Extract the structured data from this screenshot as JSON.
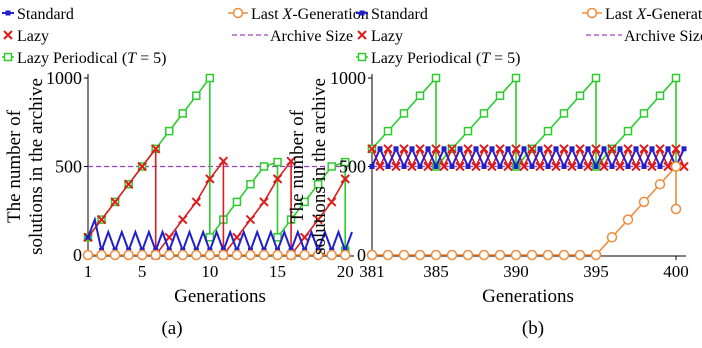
{
  "figure_captions": [
    "(a)",
    "(b)"
  ],
  "legend": {
    "standard": "Standard",
    "last_x_prefix": "Last ",
    "last_x_var": "X",
    "last_x_suffix": "-Generation",
    "lazy": "Lazy",
    "archive": "Archive Size",
    "periodical_prefix": "Lazy Periodical (",
    "periodical_var": "T",
    "periodical_suffix": " = 5)"
  },
  "colors": {
    "standard": "#1f1fcc",
    "last_x": "#f08c3c",
    "lazy": "#dd1c1c",
    "periodical": "#2ccc2c",
    "archive": "#a040c0"
  },
  "chart_data": [
    {
      "type": "line",
      "panel": "(a)",
      "xlabel": "Generations",
      "ylabel": [
        "The number of",
        "solutions in the archive"
      ],
      "xlim": [
        1,
        20.5
      ],
      "ylim": [
        0,
        1000
      ],
      "xticks": [
        1,
        5,
        10,
        15,
        20
      ],
      "yticks": [
        0,
        500,
        1000
      ],
      "archive_size": 500,
      "series": [
        {
          "key": "periodical",
          "name": "Lazy Periodical (T = 5)",
          "points": [
            [
              1,
              100
            ],
            [
              2,
              200
            ],
            [
              3,
              300
            ],
            [
              4,
              400
            ],
            [
              5,
              500
            ],
            [
              6,
              600
            ],
            [
              7,
              700
            ],
            [
              8,
              800
            ],
            [
              9,
              900
            ],
            [
              10,
              1000
            ],
            [
              10,
              100
            ],
            [
              11,
              200
            ],
            [
              12,
              300
            ],
            [
              13,
              400
            ],
            [
              14,
              500
            ],
            [
              15,
              525
            ],
            [
              15,
              100
            ],
            [
              16,
              200
            ],
            [
              17,
              300
            ],
            [
              18,
              400
            ],
            [
              19,
              500
            ],
            [
              20,
              525
            ],
            [
              20,
              25
            ]
          ]
        },
        {
          "key": "lazy",
          "name": "Lazy",
          "points": [
            [
              1,
              100
            ],
            [
              2,
              200
            ],
            [
              3,
              300
            ],
            [
              4,
              400
            ],
            [
              5,
              500
            ],
            [
              6,
              600
            ],
            [
              6,
              0
            ],
            [
              7,
              100
            ],
            [
              8,
              200
            ],
            [
              9,
              300
            ],
            [
              10,
              430
            ],
            [
              11,
              530
            ],
            [
              11,
              0
            ],
            [
              12,
              100
            ],
            [
              13,
              200
            ],
            [
              14,
              300
            ],
            [
              15,
              430
            ],
            [
              16,
              530
            ],
            [
              16,
              0
            ],
            [
              17,
              100
            ],
            [
              18,
              200
            ],
            [
              19,
              300
            ],
            [
              20,
              430
            ]
          ]
        },
        {
          "key": "standard",
          "name": "Standard",
          "points": [
            [
              1,
              100
            ],
            [
              1.5,
              200
            ],
            [
              2,
              25
            ],
            [
              2.5,
              130
            ],
            [
              3,
              25
            ],
            [
              3.5,
              130
            ],
            [
              4,
              25
            ],
            [
              4.5,
              130
            ],
            [
              5,
              25
            ],
            [
              5.5,
              130
            ],
            [
              6,
              25
            ],
            [
              6.5,
              130
            ],
            [
              7,
              25
            ],
            [
              7.5,
              130
            ],
            [
              8,
              25
            ],
            [
              8.5,
              130
            ],
            [
              9,
              25
            ],
            [
              9.5,
              130
            ],
            [
              10,
              25
            ],
            [
              10.5,
              130
            ],
            [
              11,
              25
            ],
            [
              11.5,
              130
            ],
            [
              12,
              25
            ],
            [
              12.5,
              130
            ],
            [
              13,
              25
            ],
            [
              13.5,
              130
            ],
            [
              14,
              25
            ],
            [
              14.5,
              130
            ],
            [
              15,
              25
            ],
            [
              15.5,
              130
            ],
            [
              16,
              25
            ],
            [
              16.5,
              130
            ],
            [
              17,
              25
            ],
            [
              17.5,
              130
            ],
            [
              18,
              25
            ],
            [
              18.5,
              130
            ],
            [
              19,
              25
            ],
            [
              19.5,
              130
            ],
            [
              20,
              25
            ],
            [
              20.5,
              130
            ]
          ]
        },
        {
          "key": "last_x",
          "name": "Last X-Generation",
          "points": [
            [
              1,
              0
            ],
            [
              2,
              0
            ],
            [
              3,
              0
            ],
            [
              4,
              0
            ],
            [
              5,
              0
            ],
            [
              6,
              0
            ],
            [
              7,
              0
            ],
            [
              8,
              0
            ],
            [
              9,
              0
            ],
            [
              10,
              0
            ],
            [
              11,
              0
            ],
            [
              12,
              0
            ],
            [
              13,
              0
            ],
            [
              14,
              0
            ],
            [
              15,
              0
            ],
            [
              16,
              0
            ],
            [
              17,
              0
            ],
            [
              18,
              0
            ],
            [
              19,
              0
            ],
            [
              20,
              0
            ]
          ]
        }
      ]
    },
    {
      "type": "line",
      "panel": "(b)",
      "xlabel": "Generations",
      "ylabel": [
        "The number of",
        "solutions in the archive"
      ],
      "xlim": [
        381,
        400.5
      ],
      "ylim": [
        0,
        1000
      ],
      "xticks": [
        381,
        385,
        390,
        395,
        400
      ],
      "yticks": [
        0,
        500,
        1000
      ],
      "archive_size": 500,
      "series": [
        {
          "key": "periodical",
          "name": "Lazy Periodical (T = 5)",
          "points": [
            [
              381,
              600
            ],
            [
              382,
              700
            ],
            [
              383,
              800
            ],
            [
              384,
              900
            ],
            [
              385,
              1000
            ],
            [
              385,
              500
            ],
            [
              386,
              600
            ],
            [
              387,
              700
            ],
            [
              388,
              800
            ],
            [
              389,
              900
            ],
            [
              390,
              1000
            ],
            [
              390,
              500
            ],
            [
              391,
              600
            ],
            [
              392,
              700
            ],
            [
              393,
              800
            ],
            [
              394,
              900
            ],
            [
              395,
              1000
            ],
            [
              395,
              500
            ],
            [
              396,
              600
            ],
            [
              397,
              700
            ],
            [
              398,
              800
            ],
            [
              399,
              900
            ],
            [
              400,
              1000
            ],
            [
              400,
              500
            ]
          ]
        },
        {
          "key": "lazy",
          "name": "Lazy",
          "points": [
            [
              381,
              600
            ],
            [
              381.5,
              500
            ],
            [
              382,
              600
            ],
            [
              382.5,
              500
            ],
            [
              383,
              600
            ],
            [
              383.5,
              500
            ],
            [
              384,
              600
            ],
            [
              384.5,
              500
            ],
            [
              385,
              600
            ],
            [
              385.5,
              500
            ],
            [
              386,
              600
            ],
            [
              386.5,
              500
            ],
            [
              387,
              600
            ],
            [
              387.5,
              500
            ],
            [
              388,
              600
            ],
            [
              388.5,
              500
            ],
            [
              389,
              600
            ],
            [
              389.5,
              500
            ],
            [
              390,
              600
            ],
            [
              390.5,
              500
            ],
            [
              391,
              600
            ],
            [
              391.5,
              500
            ],
            [
              392,
              600
            ],
            [
              392.5,
              500
            ],
            [
              393,
              600
            ],
            [
              393.5,
              500
            ],
            [
              394,
              600
            ],
            [
              394.5,
              500
            ],
            [
              395,
              600
            ],
            [
              395.5,
              500
            ],
            [
              396,
              600
            ],
            [
              396.5,
              500
            ],
            [
              397,
              600
            ],
            [
              397.5,
              500
            ],
            [
              398,
              600
            ],
            [
              398.5,
              500
            ],
            [
              399,
              600
            ],
            [
              399.5,
              500
            ],
            [
              400,
              600
            ],
            [
              400.5,
              500
            ]
          ]
        },
        {
          "key": "standard",
          "name": "Standard",
          "points": [
            [
              381,
              500
            ],
            [
              381.5,
              600
            ],
            [
              382,
              500
            ],
            [
              382.5,
              600
            ],
            [
              383,
              500
            ],
            [
              383.5,
              600
            ],
            [
              384,
              500
            ],
            [
              384.5,
              600
            ],
            [
              385,
              500
            ],
            [
              385.5,
              600
            ],
            [
              386,
              500
            ],
            [
              386.5,
              600
            ],
            [
              387,
              500
            ],
            [
              387.5,
              600
            ],
            [
              388,
              500
            ],
            [
              388.5,
              600
            ],
            [
              389,
              500
            ],
            [
              389.5,
              600
            ],
            [
              390,
              500
            ],
            [
              390.5,
              600
            ],
            [
              391,
              500
            ],
            [
              391.5,
              600
            ],
            [
              392,
              500
            ],
            [
              392.5,
              600
            ],
            [
              393,
              500
            ],
            [
              393.5,
              600
            ],
            [
              394,
              500
            ],
            [
              394.5,
              600
            ],
            [
              395,
              500
            ],
            [
              395.5,
              600
            ],
            [
              396,
              500
            ],
            [
              396.5,
              600
            ],
            [
              397,
              500
            ],
            [
              397.5,
              600
            ],
            [
              398,
              500
            ],
            [
              398.5,
              600
            ],
            [
              399,
              500
            ],
            [
              399.5,
              600
            ],
            [
              400,
              500
            ],
            [
              400.5,
              600
            ]
          ]
        },
        {
          "key": "last_x",
          "name": "Last X-Generation",
          "points": [
            [
              381,
              0
            ],
            [
              382,
              0
            ],
            [
              383,
              0
            ],
            [
              384,
              0
            ],
            [
              385,
              0
            ],
            [
              386,
              0
            ],
            [
              387,
              0
            ],
            [
              388,
              0
            ],
            [
              389,
              0
            ],
            [
              390,
              0
            ],
            [
              391,
              0
            ],
            [
              392,
              0
            ],
            [
              393,
              0
            ],
            [
              394,
              0
            ],
            [
              395,
              0
            ],
            [
              396,
              100
            ],
            [
              397,
              200
            ],
            [
              398,
              300
            ],
            [
              399,
              400
            ],
            [
              400,
              500
            ],
            [
              400,
              260
            ]
          ]
        }
      ]
    }
  ]
}
